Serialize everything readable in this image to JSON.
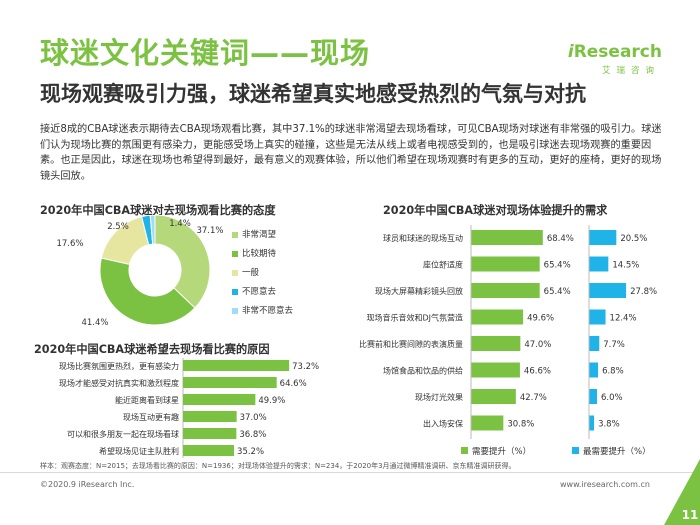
{
  "header": {
    "title": "球迷文化关键词——现场",
    "subtitle": "现场观赛吸引力强，球迷希望真实地感受热烈的气氛与对抗",
    "logo_text": "Research",
    "logo_i": "i",
    "logo_cn": "艾瑞咨询"
  },
  "intro_text": "接近8成的CBA球迷表示期待去CBA现场观看比赛，其中37.1%的球迷非常渴望去现场看球，可见CBA现场对球迷有非常强的吸引力。球迷们认为现场比赛的氛围更有感染力，更能感受场上真实的碰撞，这些是无法从线上或者电视感受到的，也是吸引球迷去现场观赛的重要因素。也正是因此，球迷在现场也希望得到最好，最有意义的观赛体验，所以他们希望在现场观赛时有更多的互动，更好的座椅，更好的现场镜头回放。",
  "colors": {
    "green": "#7cc242",
    "light_green": "#b5d97a",
    "blue": "#1fb3e8",
    "light_blue": "#9fdcf5",
    "yellow": "#e6e6a0"
  },
  "chart_data": [
    {
      "type": "pie",
      "title": "2020年中国CBA球迷对去现场观看比赛的态度",
      "labels": [
        "非常渴望",
        "比较期待",
        "一般",
        "不愿意去",
        "非常不愿意去"
      ],
      "values": [
        37.1,
        41.4,
        17.6,
        2.5,
        1.4
      ],
      "value_labels": [
        "37.1%",
        "41.4%",
        "17.6%",
        "2.5%",
        "1.4%"
      ],
      "legend": "right"
    },
    {
      "type": "bar",
      "orientation": "horizontal",
      "title": "2020年中国CBA球迷希望去现场看比赛的原因",
      "categories": [
        "现场比赛氛围更热烈，更有感染力",
        "现场才能感受对抗真实和激烈程度",
        "能近距离看到球星",
        "现场互动更有趣",
        "可以和很多朋友一起在现场看球",
        "希望现场见证主队胜利"
      ],
      "values": [
        73.2,
        64.6,
        49.9,
        37.0,
        36.8,
        35.2
      ],
      "value_labels": [
        "73.2%",
        "64.6%",
        "49.9%",
        "37.0%",
        "36.8%",
        "35.2%"
      ]
    },
    {
      "type": "bar",
      "orientation": "horizontal",
      "title": "2020年中国CBA球迷对现场体验提升的需求",
      "categories": [
        "球员和球迷的现场互动",
        "座位舒适度",
        "现场大屏幕精彩镜头回放",
        "现场音乐音效和DJ气氛营造",
        "比赛前和比赛间隙的表演质量",
        "场馆食品和饮品的供给",
        "现场灯光效果",
        "出入场安保"
      ],
      "series": [
        {
          "name": "需要提升（%）",
          "values": [
            68.4,
            65.4,
            65.4,
            49.6,
            47.0,
            46.6,
            42.7,
            30.8
          ],
          "value_labels": [
            "68.4%",
            "65.4%",
            "65.4%",
            "49.6%",
            "47.0%",
            "46.6%",
            "42.7%",
            "30.8%"
          ]
        },
        {
          "name": "最需要提升（%）",
          "values": [
            20.5,
            14.5,
            27.8,
            12.4,
            7.7,
            6.8,
            6.0,
            3.8
          ],
          "value_labels": [
            "20.5%",
            "14.5%",
            "27.8%",
            "12.4%",
            "7.7%",
            "6.8%",
            "6.0%",
            "3.8%"
          ]
        }
      ],
      "legend": "bottom"
    }
  ],
  "footer": {
    "footnote": "样本：观赛态度：N=2015；去现场看比赛的原因：N=1936；对现场体验提升的需求：N=234，于2020年3月通过微博精准调研、京东精准调研获得。",
    "copyright": "©2020.9 iResearch Inc.",
    "website": "www.iresearch.com.cn",
    "page_number": "11"
  }
}
